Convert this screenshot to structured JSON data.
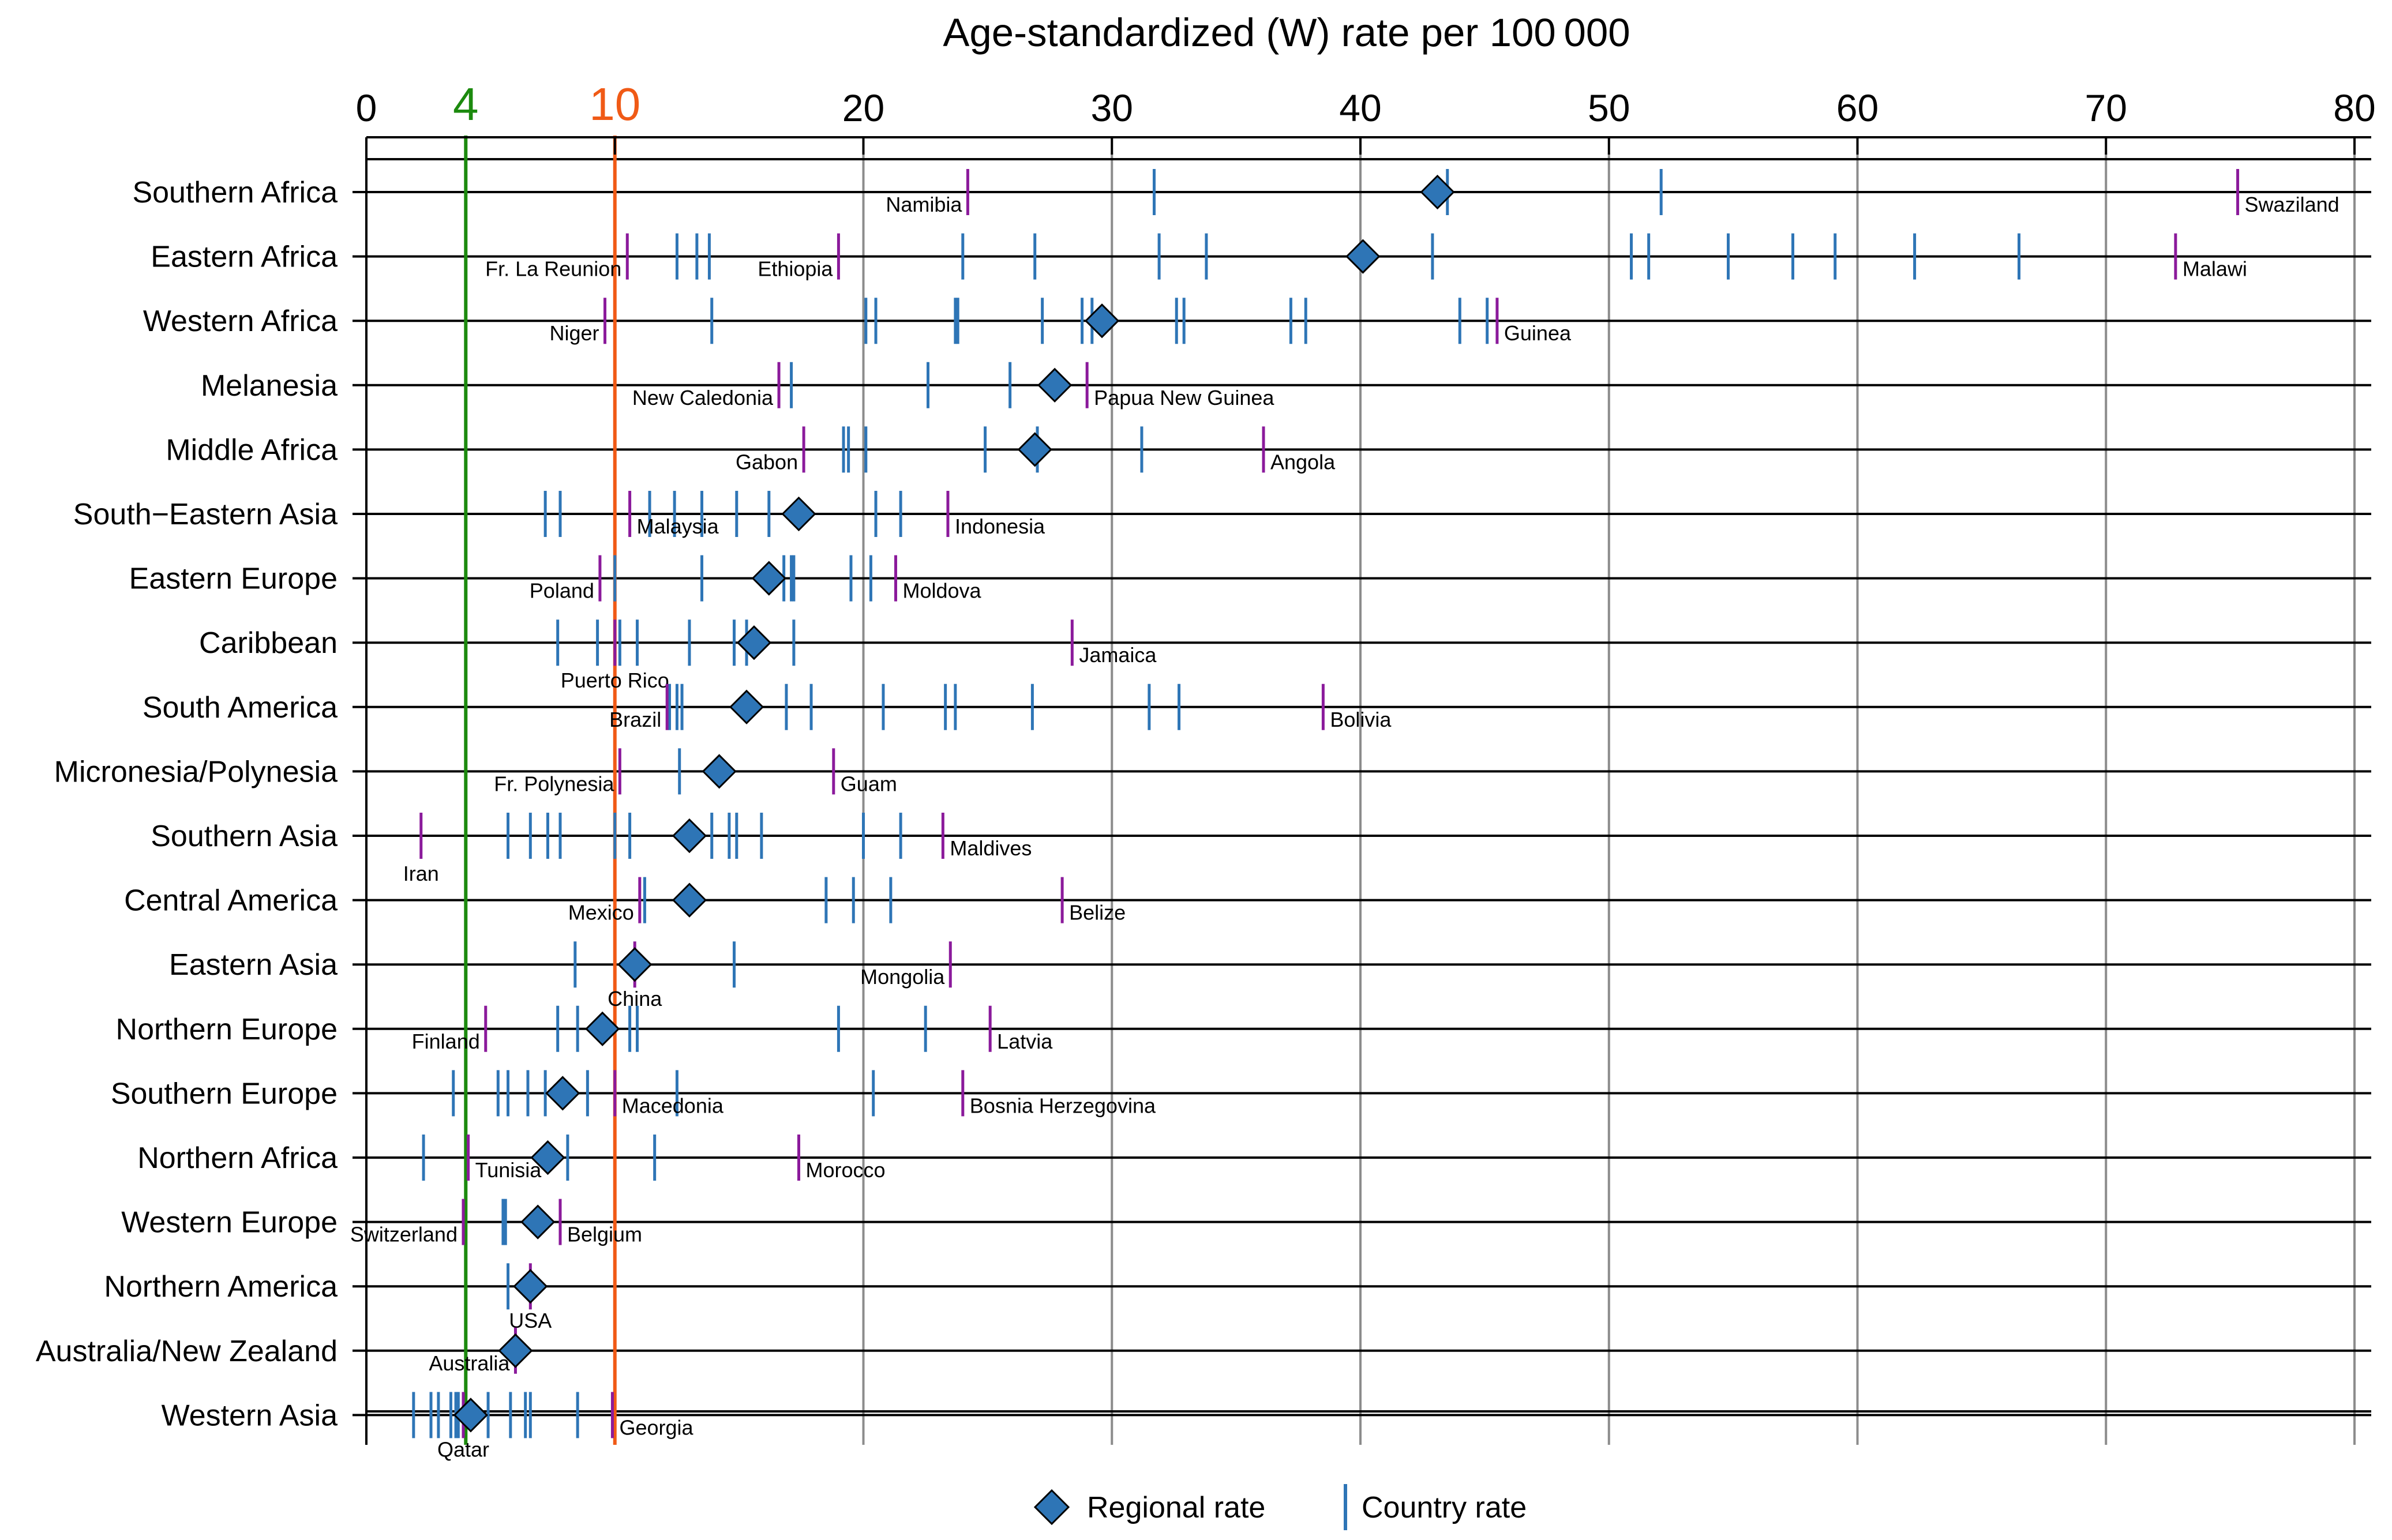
{
  "chart_data": {
    "type": "scatter",
    "title": "Age-standardized (W) rate per 100 000",
    "xlim": [
      0,
      80
    ],
    "x_ticks": [
      0,
      10,
      20,
      30,
      40,
      50,
      60,
      70,
      80
    ],
    "grid": "vertical lines at 20, 30, 40, 50, 60, 70, 80; horizontal line per region",
    "legend_position": "bottom-center",
    "reference_lines": [
      {
        "label": "4",
        "value": 4,
        "color": "#1c8a0e"
      },
      {
        "label": "10",
        "value": 10,
        "color": "#f05a16"
      }
    ],
    "colors": {
      "regional": "#2e75b6",
      "country": "#2e75b6",
      "highlight": "#8b1a9b"
    },
    "legend": {
      "regional": "Regional rate",
      "country": "Country rate"
    },
    "regions": [
      {
        "name": "Southern Africa",
        "regional": 43.1,
        "countries": [
          31.7,
          43.5,
          52.1
        ],
        "labels": [
          {
            "name": "Namibia",
            "value": 24.2,
            "side": "left"
          },
          {
            "name": "Swaziland",
            "value": 75.3,
            "side": "right"
          }
        ]
      },
      {
        "name": "Eastern Africa",
        "regional": 40.1,
        "countries": [
          12.5,
          13.3,
          13.8,
          24.0,
          26.9,
          31.9,
          33.8,
          42.9,
          50.9,
          51.6,
          54.8,
          57.4,
          59.1,
          62.3,
          66.5
        ],
        "labels": [
          {
            "name": "Fr. La Reunion",
            "value": 10.5,
            "side": "left"
          },
          {
            "name": "Ethiopia",
            "value": 19.0,
            "side": "left"
          },
          {
            "name": "Malawi",
            "value": 72.8,
            "side": "right"
          }
        ]
      },
      {
        "name": "Western Africa",
        "regional": 29.6,
        "countries": [
          13.9,
          20.1,
          20.5,
          23.7,
          23.8,
          27.2,
          28.8,
          29.2,
          32.6,
          32.9,
          37.2,
          37.8,
          44.0,
          45.1
        ],
        "labels": [
          {
            "name": "Niger",
            "value": 9.6,
            "side": "left"
          },
          {
            "name": "Guinea",
            "value": 45.5,
            "side": "right"
          }
        ]
      },
      {
        "name": "Melanesia",
        "regional": 27.7,
        "countries": [
          17.1,
          22.6,
          25.9
        ],
        "labels": [
          {
            "name": "New Caledonia",
            "value": 16.6,
            "side": "left"
          },
          {
            "name": "Papua New Guinea",
            "value": 29.0,
            "side": "right"
          }
        ]
      },
      {
        "name": "Middle Africa",
        "regional": 26.9,
        "countries": [
          19.2,
          19.4,
          20.1,
          24.9,
          27.0,
          31.2
        ],
        "labels": [
          {
            "name": "Gabon",
            "value": 17.6,
            "side": "left"
          },
          {
            "name": "Angola",
            "value": 36.1,
            "side": "right"
          }
        ]
      },
      {
        "name": "South−Eastern Asia",
        "regional": 17.4,
        "countries": [
          7.2,
          7.8,
          11.4,
          12.4,
          13.5,
          14.9,
          16.2,
          20.5,
          21.5
        ],
        "labels": [
          {
            "name": "Malaysia",
            "value": 10.6,
            "side": "right"
          },
          {
            "name": "Indonesia",
            "value": 23.4,
            "side": "right"
          }
        ]
      },
      {
        "name": "Eastern Europe",
        "regional": 16.2,
        "countries": [
          10.0,
          13.5,
          16.8,
          17.1,
          17.2,
          19.5,
          20.3
        ],
        "labels": [
          {
            "name": "Poland",
            "value": 9.4,
            "side": "left"
          },
          {
            "name": "Moldova",
            "value": 21.3,
            "side": "right"
          }
        ]
      },
      {
        "name": "Caribbean",
        "regional": 15.6,
        "countries": [
          7.7,
          9.3,
          10.2,
          10.9,
          13.0,
          14.8,
          15.3,
          17.2
        ],
        "labels": [
          {
            "name": "Puerto Rico",
            "value": 10.0,
            "side": "center"
          },
          {
            "name": "Jamaica",
            "value": 28.4,
            "side": "right"
          }
        ]
      },
      {
        "name": "South America",
        "regional": 15.3,
        "countries": [
          12.2,
          12.5,
          12.7,
          16.9,
          17.9,
          20.8,
          23.3,
          23.7,
          26.8,
          31.5,
          32.7
        ],
        "labels": [
          {
            "name": "Brazil",
            "value": 12.1,
            "side": "left"
          },
          {
            "name": "Bolivia",
            "value": 38.5,
            "side": "right"
          }
        ]
      },
      {
        "name": "Micronesia/Polynesia",
        "regional": 14.2,
        "countries": [
          12.6
        ],
        "labels": [
          {
            "name": "Fr. Polynesia",
            "value": 10.2,
            "side": "left"
          },
          {
            "name": "Guam",
            "value": 18.8,
            "side": "right"
          }
        ]
      },
      {
        "name": "Southern Asia",
        "regional": 13.0,
        "countries": [
          5.7,
          6.6,
          7.3,
          7.8,
          10.0,
          10.6,
          13.9,
          14.6,
          14.9,
          15.9,
          20.0,
          21.5
        ],
        "labels": [
          {
            "name": "Iran",
            "value": 2.2,
            "side": "center"
          },
          {
            "name": "Maldives",
            "value": 23.2,
            "side": "right"
          }
        ]
      },
      {
        "name": "Central America",
        "regional": 13.0,
        "countries": [
          11.2,
          18.5,
          19.6,
          21.1
        ],
        "labels": [
          {
            "name": "Mexico",
            "value": 11.0,
            "side": "left"
          },
          {
            "name": "Belize",
            "value": 28.0,
            "side": "right"
          }
        ]
      },
      {
        "name": "Eastern Asia",
        "regional": 10.8,
        "countries": [
          8.4,
          14.8
        ],
        "labels": [
          {
            "name": "China",
            "value": 10.8,
            "side": "below"
          },
          {
            "name": "Mongolia",
            "value": 23.5,
            "side": "left"
          }
        ]
      },
      {
        "name": "Northern Europe",
        "regional": 9.5,
        "countries": [
          7.7,
          8.5,
          10.6,
          10.9,
          19.0,
          22.5
        ],
        "labels": [
          {
            "name": "Finland",
            "value": 4.8,
            "side": "left"
          },
          {
            "name": "Latvia",
            "value": 25.1,
            "side": "right"
          }
        ]
      },
      {
        "name": "Southern Europe",
        "regional": 7.9,
        "countries": [
          3.5,
          5.3,
          5.7,
          6.5,
          7.2,
          8.9,
          12.5,
          20.4
        ],
        "labels": [
          {
            "name": "Macedonia",
            "value": 10.0,
            "side": "right"
          },
          {
            "name": "Bosnia Herzegovina",
            "value": 24.0,
            "side": "right"
          }
        ]
      },
      {
        "name": "Northern Africa",
        "regional": 7.3,
        "countries": [
          2.3,
          8.1,
          11.6
        ],
        "labels": [
          {
            "name": "Tunisia",
            "value": 4.1,
            "side": "right"
          },
          {
            "name": "Morocco",
            "value": 17.4,
            "side": "right"
          }
        ]
      },
      {
        "name": "Western Europe",
        "regional": 6.9,
        "countries": [
          5.5,
          5.6
        ],
        "labels": [
          {
            "name": "Switzerland",
            "value": 3.9,
            "side": "left"
          },
          {
            "name": "Belgium",
            "value": 7.8,
            "side": "right"
          }
        ]
      },
      {
        "name": "Northern America",
        "regional": 6.6,
        "countries": [
          5.7
        ],
        "labels": [
          {
            "name": "USA",
            "value": 6.6,
            "side": "below"
          }
        ]
      },
      {
        "name": "Australia/New Zealand",
        "regional": 6.0,
        "countries": [],
        "labels": [
          {
            "name": "Australia",
            "value": 6.0,
            "side": "left"
          }
        ]
      },
      {
        "name": "Western Asia",
        "regional": 4.2,
        "countries": [
          1.9,
          2.6,
          2.9,
          3.4,
          3.6,
          3.7,
          4.9,
          5.8,
          6.4,
          6.6,
          8.5
        ],
        "labels": [
          {
            "name": "Qatar",
            "value": 3.9,
            "side": "below"
          },
          {
            "name": "Georgia",
            "value": 9.9,
            "side": "right"
          }
        ]
      }
    ]
  }
}
